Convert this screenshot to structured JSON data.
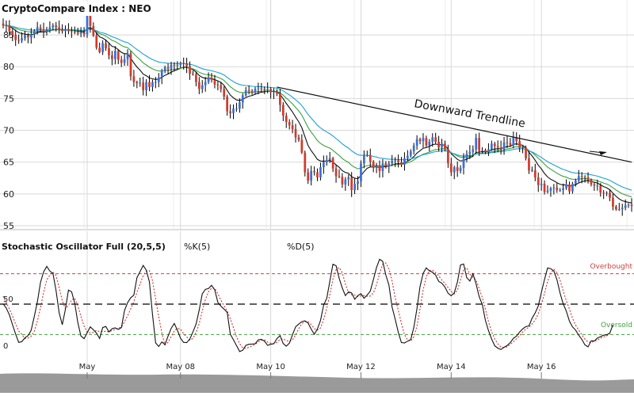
{
  "colors": {
    "up": "#3a6fd8",
    "down": "#d23a2a",
    "wick": "#000000",
    "ema_fast": "#111111",
    "ema_mid": "#3aa040",
    "ema_slow": "#1e9fd8",
    "trendline": "#111111",
    "k_line": "#111111",
    "d_line": "#d03030",
    "overbought": "#d04040",
    "oversold": "#40a040",
    "midline": "#000000",
    "grid": "#d8d8d8",
    "navigator_bg": "#9a9a9a"
  },
  "chart_data": [
    {
      "type": "candlestick",
      "title": "CryptoCompare Index : NEO",
      "xlabel": "",
      "ylabel": "",
      "ylim": [
        55,
        88
      ],
      "yticks": [
        "85",
        "80",
        "75",
        "70",
        "65",
        "60",
        "55"
      ],
      "xticks": [
        {
          "label": "May",
          "t": 27
        },
        {
          "label": "May 08",
          "t": 57
        },
        {
          "label": "May 10",
          "t": 86
        },
        {
          "label": "May 12",
          "t": 115
        },
        {
          "label": "May 14",
          "t": 144
        },
        {
          "label": "May 16",
          "t": 173
        }
      ],
      "grid": true,
      "moving_averages": [
        "black",
        "green",
        "blue"
      ],
      "annotation": {
        "text": "Downward Trendline",
        "from": [
          88,
          76.8
        ],
        "to": [
          202,
          65.0
        ]
      },
      "series": [
        {
          "values": [
            86.5,
            86.5,
            85.6,
            85,
            84.2,
            84.1,
            84.5,
            84.9,
            84.6,
            85.1,
            85.6,
            86.2,
            85.9,
            85.5,
            85.7,
            86.2,
            86.5,
            86.2,
            85.8,
            85.6,
            85.9,
            85.6,
            85.5,
            85.4,
            85.2,
            85.4,
            85.1,
            88.5,
            86.4,
            84.9,
            83,
            82.3,
            83.7,
            82.9,
            81.8,
            81.2,
            82.5,
            81.1,
            80.6,
            81.2,
            82.1,
            78.5,
            77.6,
            77.4,
            77.5,
            76.3,
            77.6,
            76.8,
            77.6,
            77.6,
            78.3,
            79.4,
            79.9,
            79.7,
            80.3,
            80.2,
            80.3,
            80.6,
            80.5,
            80.1,
            78.9,
            78.8,
            77.6,
            76.5,
            77.1,
            77.6,
            78.3,
            77.9,
            77.2,
            77.1,
            76.5,
            75.3,
            73,
            72.7,
            73.4,
            73.4,
            74.4,
            75.5,
            76.3,
            76.2,
            75.9,
            76.5,
            76.6,
            76.5,
            76.3,
            76.5,
            76,
            76.1,
            75.8,
            74,
            72.3,
            71.3,
            70.8,
            70.2,
            68.9,
            68.5,
            66.5,
            63.4,
            62.1,
            63.6,
            63.4,
            62.6,
            64.2,
            65,
            65.3,
            65.6,
            64,
            62.8,
            62.7,
            61.5,
            62.3,
            62.6,
            60.6,
            61.6,
            62,
            64.8,
            66.1,
            66.1,
            65.1,
            64.2,
            64.4,
            63.6,
            64.8,
            64.3,
            64.8,
            65.2,
            65.3,
            65,
            64.6,
            65.6,
            66,
            66.7,
            67.6,
            68.6,
            68.3,
            68.8,
            67.6,
            68.2,
            68.9,
            68.2,
            67.3,
            67.9,
            67,
            64.8,
            63.4,
            64.2,
            63.6,
            64.1,
            65.6,
            66.3,
            66.6,
            67,
            68.8,
            66.8,
            66.9,
            66.6,
            67,
            67.9,
            67.5,
            67.3,
            67.1,
            68.1,
            68,
            67.7,
            68.9,
            68.3,
            67.2,
            67.3,
            65.6,
            63.7,
            63.7,
            62.6,
            61.4,
            61.6,
            60.3,
            60.5,
            60.9,
            61,
            60.6,
            60.6,
            60.9,
            61.5,
            60.4,
            61.6,
            62.1,
            62.8,
            62.7,
            62.6,
            62.2,
            61.5,
            61.3,
            61.3,
            60.2,
            60.1,
            60.2,
            59.4,
            58,
            57.6,
            57.6,
            57.8,
            58.2,
            58.3,
            58.1
          ]
        }
      ]
    },
    {
      "type": "line",
      "title": "Stochastic Oscillator Full (20,5,5)",
      "legend": [
        "%K(5)",
        "%D(5)"
      ],
      "ylim": [
        0,
        100
      ],
      "yticks": [
        "50",
        "0"
      ],
      "reference_lines": [
        {
          "label": "Overbought",
          "value": 80
        },
        {
          "label": "",
          "value": 50
        },
        {
          "label": "Oversold",
          "value": 20
        }
      ],
      "series": [
        {
          "name": "%K(5)",
          "values": [
            50.2,
            46.2,
            39.3,
            29.7,
            20.5,
            12.3,
            13,
            16.9,
            18.8,
            24.2,
            37.9,
            52.4,
            71.4,
            81.8,
            87.3,
            82.6,
            80.3,
            63.5,
            41.2,
            29.7,
            44.7,
            63.9,
            62.1,
            51,
            31.8,
            18.6,
            15.9,
            21.8,
            27.6,
            24.7,
            21.4,
            16.1,
            26.9,
            28,
            22.6,
            25.8,
            26.6,
            25.1,
            26.9,
            43.6,
            51.5,
            56.3,
            58.9,
            76.1,
            82,
            88.2,
            83.4,
            72.1,
            40,
            11.7,
            8.2,
            12.7,
            10.1,
            18.5,
            26.1,
            30.9,
            24.4,
            16.3,
            12.3,
            12,
            15.5,
            22.6,
            30.3,
            43.9,
            60.1,
            64.6,
            65.4,
            68.6,
            64,
            51.7,
            48,
            45.1,
            41.8,
            20.3,
            14.9,
            9.2,
            3.2,
            4.5,
            9.3,
            10.4,
            10.6,
            10.9,
            14.8,
            15.3,
            13.4,
            9.3,
            10.4,
            10.9,
            16,
            19,
            11.2,
            8.5,
            11.6,
            19.8,
            27.6,
            30.3,
            32.7,
            33.5,
            31.3,
            25.4,
            20.3,
            25.5,
            33.8,
            49.1,
            55.7,
            72.6,
            89.3,
            87.9,
            75.4,
            65.9,
            58.4,
            62.1,
            61.1,
            54.8,
            58.4,
            60.2,
            55.8,
            59,
            62.7,
            74.3,
            86.1,
            94.3,
            92.2,
            78.6,
            68.7,
            47.3,
            35.3,
            22.1,
            12.1,
            11.7,
            13.4,
            15,
            27.1,
            45.3,
            67.4,
            80.5,
            85.8,
            82.9,
            81.5,
            78.6,
            72.4,
            70.7,
            66.8,
            60.7,
            58.3,
            61.1,
            71.9,
            88.6,
            89.6,
            76.2,
            72.7,
            80,
            70,
            57.4,
            49.6,
            34,
            23.8,
            15.6,
            8.9,
            6.6,
            5.2,
            7.4,
            9.2,
            12.1,
            16.2,
            18.5,
            22.5,
            25.6,
            27.8,
            28.5,
            36.1,
            41.3,
            48.1,
            61.8,
            74.4,
            85.7,
            85,
            82.6,
            74,
            60.9,
            50.3,
            43.1,
            33.3,
            27.6,
            24.4,
            19.3,
            15.2,
            9.8,
            7.8,
            13.8,
            13.6,
            16.6,
            17.9,
            19.4,
            19.8,
            21.4,
            29.6
          ]
        },
        {
          "name": "%D(5)",
          "values": [
            57.9,
            51.6,
            45.2,
            38.2,
            30.4,
            23.5,
            20.1,
            16,
            16.6,
            18.3,
            23.3,
            33.5,
            46.5,
            61.3,
            73.8,
            78.7,
            81.6,
            78.2,
            66.2,
            53.5,
            45.5,
            48.8,
            54.1,
            55.9,
            48.7,
            37.9,
            28.4,
            22.1,
            21.8,
            22.1,
            24.1,
            22.8,
            23.1,
            23.1,
            22.8,
            24,
            25,
            26.4,
            27.2,
            32.7,
            38.5,
            45.4,
            52.6,
            61.7,
            69.8,
            78.1,
            82.5,
            83,
            73.3,
            55,
            37.4,
            21.8,
            9.7,
            12.4,
            18.1,
            23.5,
            26.2,
            25.5,
            20.8,
            17.6,
            14.5,
            16.2,
            22,
            30.6,
            43.3,
            54.7,
            62.3,
            65.8,
            65.7,
            60.2,
            53.7,
            48.4,
            43.2,
            35.7,
            26.9,
            17.7,
            11,
            6.7,
            6.5,
            7.4,
            8.8,
            10.3,
            12.9,
            14.3,
            14.7,
            12.5,
            11.5,
            11,
            12.4,
            15.2,
            15.7,
            14,
            13.3,
            14.7,
            19.6,
            25.7,
            30.9,
            32.6,
            32.8,
            29.9,
            25.9,
            24.2,
            26.5,
            35,
            45.7,
            59.5,
            74.6,
            83.9,
            86.2,
            80.9,
            69.9,
            61.4,
            59.3,
            59,
            57.5,
            58.1,
            58.4,
            57.7,
            58,
            61.1,
            69.1,
            80.3,
            89.3,
            90.6,
            84.8,
            73,
            56.4,
            43.8,
            31,
            19.8,
            14.7,
            13.5,
            17.8,
            28.2,
            45.3,
            64.1,
            77.2,
            83.2,
            83.4,
            81.1,
            77.8,
            73.8,
            70.3,
            66.3,
            62.5,
            60,
            63.8,
            73.9,
            84.1,
            86,
            79.5,
            76.3,
            73.9,
            65.2,
            56.4,
            45,
            32.6,
            23,
            15.6,
            10.8,
            7.7,
            7.1,
            8,
            10.2,
            12.9,
            15.7,
            19,
            22.6,
            25.4,
            27.2,
            30.4,
            34.4,
            40.3,
            49.8,
            60.7,
            72.4,
            80.5,
            84.4,
            80.9,
            73.6,
            63.2,
            53.3,
            45.2,
            36,
            29.2,
            24.3,
            19.6,
            15.5,
            12.6,
            12.2,
            13.5,
            14.5,
            16.5,
            17.6,
            18.7,
            20.6
          ]
        }
      ]
    }
  ]
}
